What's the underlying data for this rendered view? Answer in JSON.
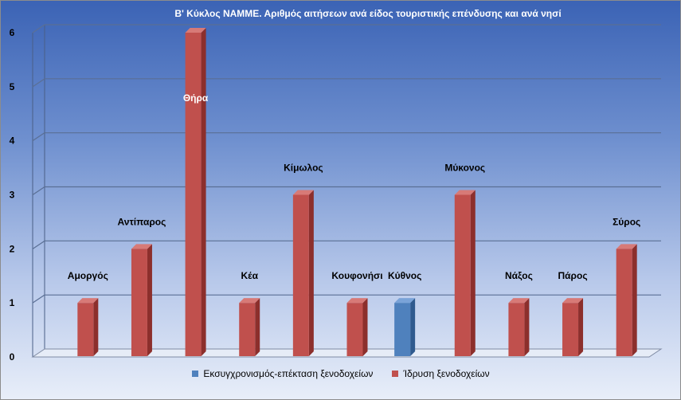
{
  "chart_data": {
    "type": "bar",
    "title": "Β' Κύκλος ΝΑΜΜΕ. Αριθμός αιτήσεων ανά είδος τουριστικής επένδυσης  και ανά νησί",
    "categories": [
      "Αμοργός",
      "Αντίπαρος",
      "Θήρα",
      "Κέα",
      "Κίμωλος",
      "Κουφονήσι",
      "Κύθνος",
      "Μύκονος",
      "Νάξος",
      "Πάρος",
      "Σύρος"
    ],
    "series": [
      {
        "name": "Εκσυγχρονισμός-επέκταση ξενοδοχείων",
        "color": "#4f81bd",
        "values": [
          0,
          0,
          0,
          0,
          0,
          0,
          1,
          0,
          0,
          0,
          0
        ]
      },
      {
        "name": "Ίδρυση ξενοδοχείων",
        "color": "#c0504d",
        "values": [
          1,
          2,
          6,
          1,
          3,
          1,
          0,
          3,
          1,
          1,
          2
        ]
      }
    ],
    "ylim": [
      0,
      6
    ],
    "yticks": [
      "0",
      "1",
      "2",
      "3",
      "4",
      "5",
      "6"
    ],
    "grid": true,
    "legend_position": "bottom"
  }
}
